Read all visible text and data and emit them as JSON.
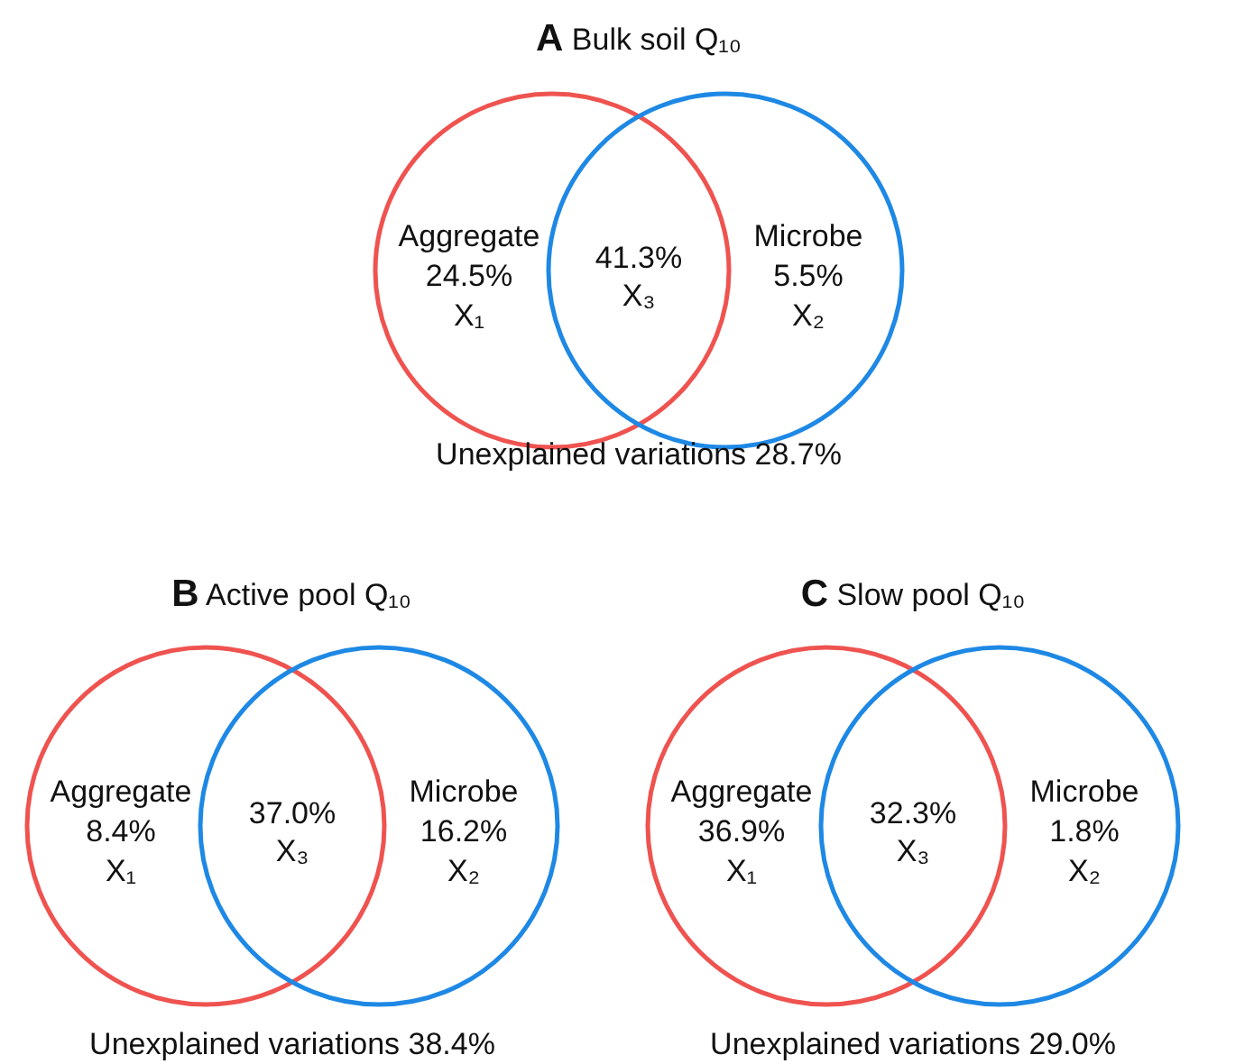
{
  "chart_data": [
    {
      "type": "other",
      "title": "A Bulk soil Q₁₀",
      "categories": [
        "X₁",
        "X₃",
        "X₂"
      ],
      "values": [
        24.5,
        41.3,
        5.5
      ],
      "value_labels": [
        "24.5%",
        "41.3%",
        "5.5%"
      ],
      "colors": [
        "#ef5350",
        null,
        "#1e88e5"
      ],
      "annotations": [
        {
          "text": "Aggregate",
          "x": "X₁"
        },
        {
          "text": "Microbe",
          "x": "X₂"
        },
        "Unexplained variations 28.7%"
      ]
    },
    {
      "type": "other",
      "title": "B Active pool Q₁₀",
      "categories": [
        "X₁",
        "X₃",
        "X₂"
      ],
      "values": [
        8.4,
        37.0,
        16.2
      ],
      "value_labels": [
        "8.4%",
        "37.0%",
        "16.2%"
      ],
      "colors": [
        "#ef5350",
        null,
        "#1e88e5"
      ],
      "annotations": [
        {
          "text": "Aggregate",
          "x": "X₁"
        },
        {
          "text": "Microbe",
          "x": "X₂"
        },
        "Unexplained variations 38.4%"
      ]
    },
    {
      "type": "other",
      "title": "C Slow pool Q₁₀",
      "categories": [
        "X₁",
        "X₃",
        "X₂"
      ],
      "values": [
        36.9,
        32.3,
        1.8
      ],
      "value_labels": [
        "36.9%",
        "32.3%",
        "1.8%"
      ],
      "colors": [
        "#ef5350",
        null,
        "#1e88e5"
      ],
      "annotations": [
        {
          "text": "Aggregate",
          "x": "X₁"
        },
        {
          "text": "Microbe",
          "x": "X₂"
        },
        "Unexplained variations 29.0%"
      ]
    }
  ]
}
